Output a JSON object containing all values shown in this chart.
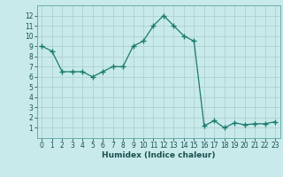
{
  "x": [
    0,
    1,
    2,
    3,
    4,
    5,
    6,
    7,
    8,
    9,
    10,
    11,
    12,
    13,
    14,
    15,
    16,
    17,
    18,
    19,
    20,
    21,
    22,
    23
  ],
  "y": [
    9,
    8.5,
    6.5,
    6.5,
    6.5,
    6,
    6.5,
    7,
    7,
    9,
    9.5,
    11,
    12,
    11,
    10,
    9.5,
    1.2,
    1.7,
    1.0,
    1.5,
    1.3,
    1.4,
    1.4,
    1.6
  ],
  "line_color": "#1a7a6e",
  "bg_color": "#c8eaea",
  "grid_color": "#b0d0d0",
  "xlabel": "Humidex (Indice chaleur)",
  "xlabel_fontsize": 6.5,
  "ylim": [
    0,
    13
  ],
  "xlim": [
    -0.5,
    23.5
  ],
  "yticks": [
    1,
    2,
    3,
    4,
    5,
    6,
    7,
    8,
    9,
    10,
    11,
    12
  ],
  "xticks": [
    0,
    1,
    2,
    3,
    4,
    5,
    6,
    7,
    8,
    9,
    10,
    11,
    12,
    13,
    14,
    15,
    16,
    17,
    18,
    19,
    20,
    21,
    22,
    23
  ],
  "marker": "+",
  "marker_size": 4,
  "linewidth": 0.9,
  "tick_fontsize": 5.5
}
